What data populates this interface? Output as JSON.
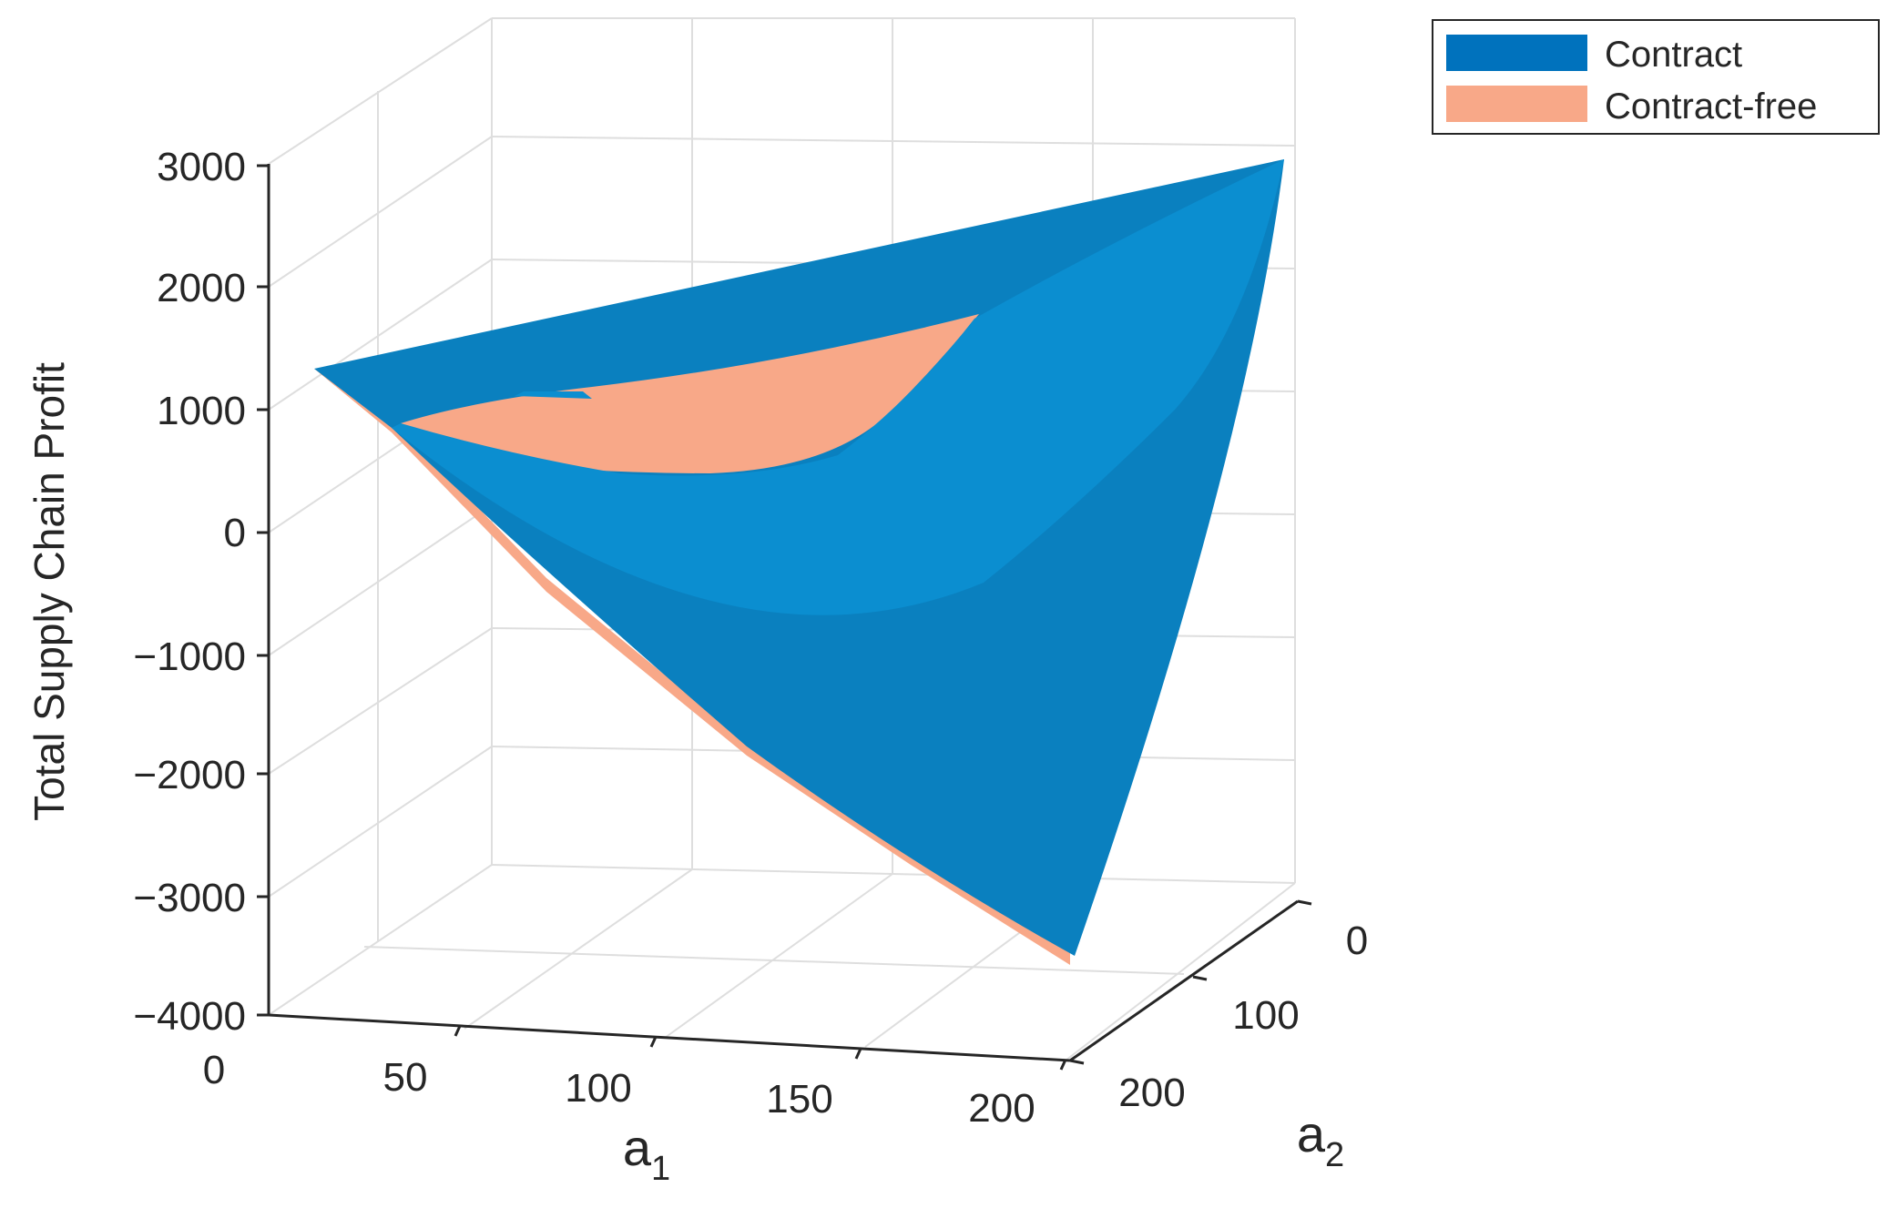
{
  "chart_data": {
    "type": "surface3d",
    "title": "",
    "xlabel": "a",
    "xlabel_sub": "1",
    "ylabel": "a",
    "ylabel_sub": "2",
    "zlabel": "Total Supply Chain Profit",
    "xlim": [
      0,
      220
    ],
    "ylim": [
      0,
      250
    ],
    "zlim": [
      -4000,
      3000
    ],
    "x_ticks": [
      "0",
      "50",
      "100",
      "150",
      "200"
    ],
    "y_ticks": [
      "0",
      "100",
      "200"
    ],
    "z_ticks": [
      "3000",
      "2000",
      "1000",
      "0",
      "−1000",
      "−2000",
      "−3000",
      "−4000"
    ],
    "grid": true,
    "legend_position": "top-right",
    "series": [
      {
        "name": "Contract",
        "color": "#0072BD"
      },
      {
        "name": "Contract-free",
        "color": "#F8A888"
      }
    ],
    "surface_corners": [
      {
        "a1": 0,
        "a2": 0,
        "profit": 1300
      },
      {
        "a1": 220,
        "a2": 0,
        "profit": 3000
      },
      {
        "a1": 0,
        "a2": 250,
        "profit": 0
      },
      {
        "a1": 220,
        "a2": 250,
        "profit": -3500
      }
    ]
  }
}
